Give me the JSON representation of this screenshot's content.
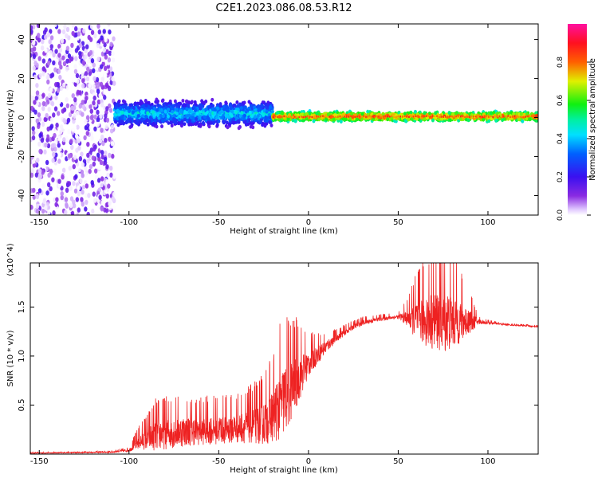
{
  "figure": {
    "title": "C2E1.2023.086.08.53.R12"
  },
  "chart_data": [
    {
      "type": "heatmap",
      "title": "",
      "xlabel": "Height of straight line (km)",
      "ylabel": "Frequency (Hz)",
      "xlim": [
        -155,
        128
      ],
      "ylim": [
        -50,
        48
      ],
      "x_ticks": [
        -150,
        -100,
        -50,
        0,
        50,
        100
      ],
      "y_ticks": [
        -40,
        -20,
        0,
        20,
        40
      ],
      "colorbar": {
        "label": "Normalized spectral amplitude",
        "range": [
          0,
          1
        ],
        "ticks": [
          0.0,
          0.2,
          0.4,
          0.6,
          0.8
        ],
        "tick_labels": [
          "0.0",
          "0.2",
          "0.4",
          "0.6",
          "0.8"
        ],
        "colormap": "rainbow (purple → blue → cyan → green → yellow → red → magenta)"
      },
      "regions": [
        {
          "x_range": [
            -155,
            -108
          ],
          "description": "scattered broadband noise across all frequencies",
          "amplitude": [
            0.0,
            0.2
          ]
        },
        {
          "x_range": [
            -108,
            -20
          ],
          "center_freq": 2,
          "spread_hz": 8,
          "amplitude": [
            0.1,
            0.5
          ]
        },
        {
          "x_range": [
            -20,
            128
          ],
          "center_freq": 0.5,
          "spread_hz": 3,
          "amplitude": [
            0.4,
            0.9
          ]
        }
      ],
      "grid": false
    },
    {
      "type": "line",
      "title": "",
      "xlabel": "Height of straight line (km)",
      "ylabel": "SNR (10 * v/v)",
      "y_multiplier": "(x10^4)",
      "xlim": [
        -155,
        128
      ],
      "ylim": [
        0,
        1.95
      ],
      "x_ticks": [
        -150,
        -100,
        -50,
        0,
        50,
        100
      ],
      "y_ticks": [
        0.5,
        1.0,
        1.5
      ],
      "y_tick_labels": [
        "0.5",
        "1.0",
        "1.5"
      ],
      "series_color": "#ee2222",
      "envelope": {
        "x": [
          -155,
          -110,
          -100,
          -95,
          -85,
          -75,
          -65,
          -55,
          -45,
          -35,
          -25,
          -20,
          -15,
          -10,
          -5,
          0,
          5,
          10,
          15,
          20,
          25,
          30,
          40,
          50,
          55,
          60,
          65,
          70,
          75,
          80,
          85,
          90,
          95,
          100,
          110,
          120,
          128
        ],
        "base": [
          0.01,
          0.02,
          0.04,
          0.12,
          0.2,
          0.23,
          0.24,
          0.25,
          0.26,
          0.28,
          0.32,
          0.4,
          0.52,
          0.66,
          0.8,
          0.92,
          1.02,
          1.1,
          1.18,
          1.24,
          1.3,
          1.34,
          1.38,
          1.4,
          1.39,
          1.38,
          1.38,
          1.38,
          1.37,
          1.37,
          1.36,
          1.36,
          1.35,
          1.34,
          1.32,
          1.31,
          1.3
        ],
        "noise": [
          0.005,
          0.01,
          0.02,
          0.1,
          0.24,
          0.24,
          0.22,
          0.22,
          0.22,
          0.24,
          0.32,
          0.4,
          0.55,
          0.5,
          0.36,
          0.2,
          0.14,
          0.1,
          0.06,
          0.05,
          0.04,
          0.04,
          0.03,
          0.03,
          0.12,
          0.3,
          0.4,
          0.45,
          0.48,
          0.45,
          0.32,
          0.18,
          0.04,
          0.02,
          0.01,
          0.01,
          0.01
        ]
      },
      "grid": false
    }
  ]
}
